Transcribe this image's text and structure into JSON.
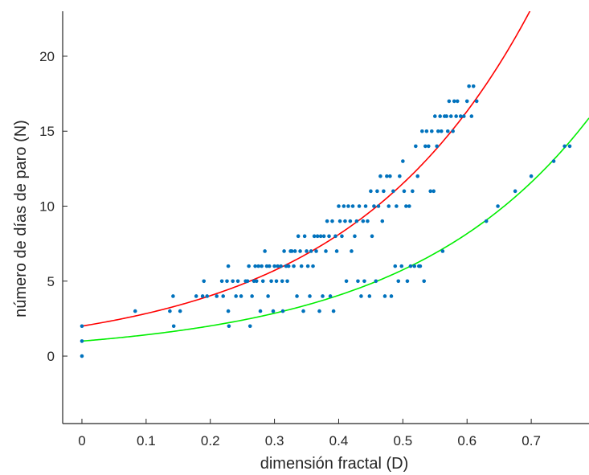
{
  "chart_data": {
    "type": "scatter",
    "title": "",
    "xlabel": "dimensión fractal (D)",
    "ylabel": "número de días de paro (N)",
    "xlim": [
      -0.03,
      0.79
    ],
    "ylim": [
      -4.5,
      23
    ],
    "xticks": [
      0,
      0.1,
      0.2,
      0.3,
      0.4,
      0.5,
      0.6,
      0.7
    ],
    "xtick_labels": [
      "0",
      "0.1",
      "0.2",
      "0.3",
      "0.4",
      "0.5",
      "0.6",
      "0.7"
    ],
    "yticks": [
      0,
      5,
      10,
      15,
      20
    ],
    "ytick_labels": [
      "0",
      "5",
      "10",
      "15",
      "20"
    ],
    "grid": false,
    "legend": null,
    "colors": {
      "points": "#0072bd",
      "curve_upper": "#ff0000",
      "curve_lower": "#00ee00",
      "axis": "#262626"
    },
    "series": [
      {
        "kind": "points",
        "color": "#0072bd",
        "points": [
          [
            0,
            0
          ],
          [
            0,
            1
          ],
          [
            0,
            2
          ],
          [
            0.083,
            3
          ],
          [
            0.137,
            3
          ],
          [
            0.142,
            4
          ],
          [
            0.143,
            2
          ],
          [
            0.153,
            3
          ],
          [
            0.178,
            4
          ],
          [
            0.188,
            4
          ],
          [
            0.19,
            5
          ],
          [
            0.195,
            4
          ],
          [
            0.21,
            4
          ],
          [
            0.218,
            5
          ],
          [
            0.22,
            4
          ],
          [
            0.226,
            5
          ],
          [
            0.228,
            6
          ],
          [
            0.228,
            3
          ],
          [
            0.229,
            2
          ],
          [
            0.235,
            5
          ],
          [
            0.24,
            4
          ],
          [
            0.243,
            5
          ],
          [
            0.248,
            4
          ],
          [
            0.255,
            5
          ],
          [
            0.258,
            5
          ],
          [
            0.26,
            6
          ],
          [
            0.262,
            2
          ],
          [
            0.265,
            4
          ],
          [
            0.268,
            5
          ],
          [
            0.27,
            6
          ],
          [
            0.272,
            5
          ],
          [
            0.275,
            6
          ],
          [
            0.278,
            3
          ],
          [
            0.28,
            6
          ],
          [
            0.282,
            5
          ],
          [
            0.285,
            7
          ],
          [
            0.288,
            6
          ],
          [
            0.29,
            4
          ],
          [
            0.292,
            6
          ],
          [
            0.295,
            5
          ],
          [
            0.298,
            3
          ],
          [
            0.3,
            6
          ],
          [
            0.303,
            5
          ],
          [
            0.305,
            6
          ],
          [
            0.31,
            6
          ],
          [
            0.312,
            5
          ],
          [
            0.313,
            3
          ],
          [
            0.315,
            7
          ],
          [
            0.318,
            6
          ],
          [
            0.32,
            5
          ],
          [
            0.322,
            6
          ],
          [
            0.325,
            7
          ],
          [
            0.327,
            7
          ],
          [
            0.33,
            6
          ],
          [
            0.332,
            7
          ],
          [
            0.335,
            4
          ],
          [
            0.337,
            8
          ],
          [
            0.34,
            7
          ],
          [
            0.342,
            6
          ],
          [
            0.345,
            3
          ],
          [
            0.347,
            8
          ],
          [
            0.35,
            7
          ],
          [
            0.352,
            6
          ],
          [
            0.355,
            4
          ],
          [
            0.357,
            7
          ],
          [
            0.36,
            6
          ],
          [
            0.362,
            8
          ],
          [
            0.365,
            7
          ],
          [
            0.367,
            8
          ],
          [
            0.37,
            3
          ],
          [
            0.372,
            8
          ],
          [
            0.375,
            4
          ],
          [
            0.377,
            8
          ],
          [
            0.38,
            7
          ],
          [
            0.382,
            9
          ],
          [
            0.385,
            8
          ],
          [
            0.387,
            4
          ],
          [
            0.39,
            9
          ],
          [
            0.392,
            3
          ],
          [
            0.395,
            8
          ],
          [
            0.397,
            7
          ],
          [
            0.4,
            10
          ],
          [
            0.402,
            9
          ],
          [
            0.405,
            8
          ],
          [
            0.408,
            10
          ],
          [
            0.41,
            9
          ],
          [
            0.412,
            5
          ],
          [
            0.415,
            10
          ],
          [
            0.418,
            9
          ],
          [
            0.42,
            7
          ],
          [
            0.422,
            10
          ],
          [
            0.425,
            8
          ],
          [
            0.428,
            9
          ],
          [
            0.43,
            5
          ],
          [
            0.432,
            10
          ],
          [
            0.435,
            4
          ],
          [
            0.438,
            9
          ],
          [
            0.44,
            5
          ],
          [
            0.442,
            10
          ],
          [
            0.445,
            9
          ],
          [
            0.448,
            4
          ],
          [
            0.45,
            11
          ],
          [
            0.452,
            8
          ],
          [
            0.455,
            10
          ],
          [
            0.458,
            5
          ],
          [
            0.46,
            11
          ],
          [
            0.462,
            10
          ],
          [
            0.465,
            12
          ],
          [
            0.468,
            9
          ],
          [
            0.47,
            11
          ],
          [
            0.472,
            4
          ],
          [
            0.475,
            12
          ],
          [
            0.478,
            10
          ],
          [
            0.48,
            12
          ],
          [
            0.482,
            4
          ],
          [
            0.485,
            11
          ],
          [
            0.488,
            6
          ],
          [
            0.49,
            10
          ],
          [
            0.493,
            5
          ],
          [
            0.495,
            12
          ],
          [
            0.498,
            6
          ],
          [
            0.5,
            13
          ],
          [
            0.502,
            11
          ],
          [
            0.505,
            10
          ],
          [
            0.507,
            5
          ],
          [
            0.51,
            10
          ],
          [
            0.512,
            6
          ],
          [
            0.515,
            11
          ],
          [
            0.518,
            6
          ],
          [
            0.52,
            14
          ],
          [
            0.523,
            12
          ],
          [
            0.525,
            6
          ],
          [
            0.527,
            6
          ],
          [
            0.53,
            15
          ],
          [
            0.533,
            5
          ],
          [
            0.535,
            14
          ],
          [
            0.537,
            15
          ],
          [
            0.54,
            14
          ],
          [
            0.543,
            11
          ],
          [
            0.545,
            15
          ],
          [
            0.548,
            11
          ],
          [
            0.55,
            16
          ],
          [
            0.553,
            14
          ],
          [
            0.555,
            15
          ],
          [
            0.558,
            16
          ],
          [
            0.56,
            15
          ],
          [
            0.562,
            7
          ],
          [
            0.565,
            16
          ],
          [
            0.568,
            16
          ],
          [
            0.57,
            15
          ],
          [
            0.572,
            17
          ],
          [
            0.575,
            16
          ],
          [
            0.578,
            15
          ],
          [
            0.58,
            17
          ],
          [
            0.583,
            16
          ],
          [
            0.585,
            17
          ],
          [
            0.59,
            16
          ],
          [
            0.595,
            16
          ],
          [
            0.6,
            17
          ],
          [
            0.603,
            18
          ],
          [
            0.607,
            16
          ],
          [
            0.61,
            18
          ],
          [
            0.615,
            17
          ],
          [
            0.63,
            9
          ],
          [
            0.648,
            10
          ],
          [
            0.675,
            11
          ],
          [
            0.7,
            12
          ],
          [
            0.735,
            13
          ],
          [
            0.752,
            14
          ],
          [
            0.76,
            14
          ]
        ]
      },
      {
        "kind": "curve",
        "color": "#ff0000",
        "formula": "2·exp(3.5·D)",
        "a": 2,
        "b": 3.5
      },
      {
        "kind": "curve",
        "color": "#00ee00",
        "formula": "exp(3.5·D)",
        "a": 1,
        "b": 3.5
      }
    ]
  }
}
